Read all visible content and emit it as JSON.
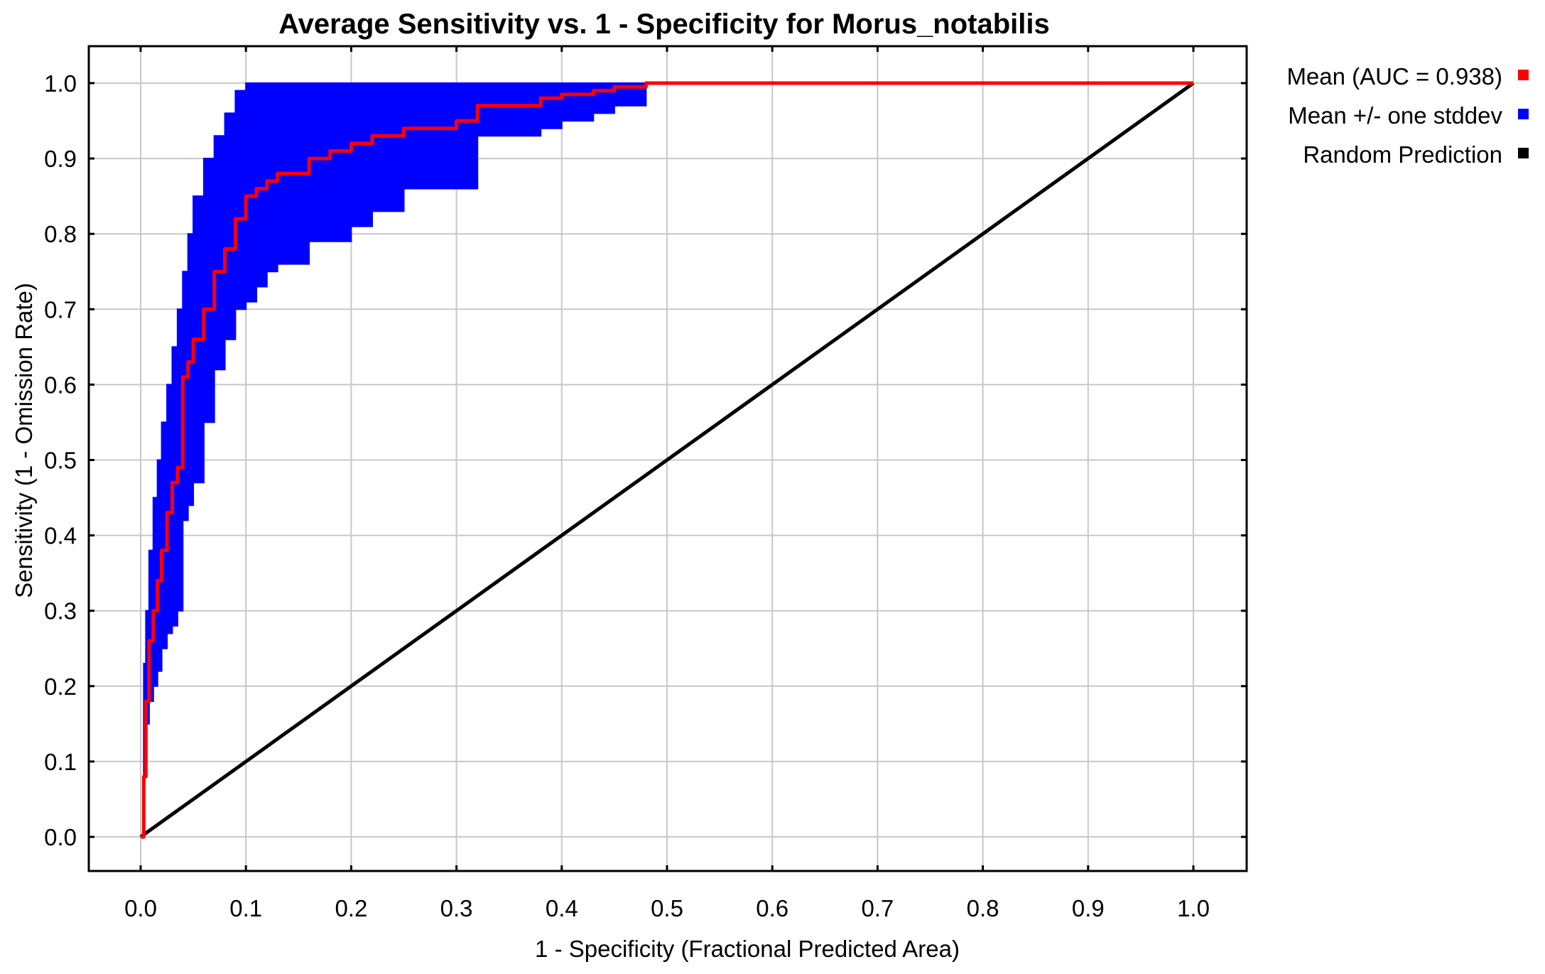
{
  "chart_data": {
    "type": "area",
    "title": "Average Sensitivity vs. 1 - Specificity for Morus_notabilis",
    "xlabel": "1 - Specificity (Fractional Predicted Area)",
    "ylabel": "Sensitivity (1 - Omission Rate)",
    "xlim": [
      0.0,
      1.0
    ],
    "ylim": [
      0.0,
      1.0
    ],
    "x_ticks": [
      "0.0",
      "0.1",
      "0.2",
      "0.3",
      "0.4",
      "0.5",
      "0.6",
      "0.7",
      "0.8",
      "0.9",
      "1.0"
    ],
    "y_ticks": [
      "0.0",
      "0.1",
      "0.2",
      "0.3",
      "0.4",
      "0.5",
      "0.6",
      "0.7",
      "0.8",
      "0.9",
      "1.0"
    ],
    "grid": true,
    "legend_position": "right",
    "colors": {
      "mean": "#ff0000",
      "stddev": "#0000ff",
      "random": "#000000"
    },
    "series": [
      {
        "name": "Mean (AUC = 0.938)",
        "x": [
          0.0,
          0.003,
          0.005,
          0.008,
          0.012,
          0.016,
          0.02,
          0.025,
          0.03,
          0.035,
          0.04,
          0.045,
          0.05,
          0.06,
          0.07,
          0.08,
          0.09,
          0.1,
          0.11,
          0.12,
          0.13,
          0.15,
          0.16,
          0.18,
          0.2,
          0.22,
          0.25,
          0.28,
          0.3,
          0.32,
          0.35,
          0.38,
          0.4,
          0.43,
          0.45,
          0.48,
          0.5,
          0.6,
          0.7,
          0.8,
          0.9,
          1.0
        ],
        "y": [
          0.0,
          0.08,
          0.18,
          0.26,
          0.3,
          0.34,
          0.38,
          0.43,
          0.47,
          0.49,
          0.61,
          0.63,
          0.66,
          0.7,
          0.75,
          0.78,
          0.82,
          0.85,
          0.86,
          0.87,
          0.88,
          0.88,
          0.9,
          0.91,
          0.92,
          0.93,
          0.94,
          0.94,
          0.95,
          0.97,
          0.97,
          0.98,
          0.985,
          0.99,
          0.995,
          1.0,
          1.0,
          1.0,
          1.0,
          1.0,
          1.0,
          1.0
        ]
      },
      {
        "name": "Mean +/- one stddev",
        "x": [
          0.0,
          0.003,
          0.005,
          0.008,
          0.012,
          0.016,
          0.02,
          0.025,
          0.03,
          0.035,
          0.04,
          0.045,
          0.05,
          0.06,
          0.07,
          0.08,
          0.09,
          0.1,
          0.11,
          0.12,
          0.13,
          0.15,
          0.16,
          0.18,
          0.2,
          0.22,
          0.25,
          0.28,
          0.3,
          0.32,
          0.35,
          0.38,
          0.4,
          0.43,
          0.45,
          0.48,
          0.5,
          0.6,
          0.7,
          0.8,
          0.9,
          1.0
        ],
        "upper": [
          0.0,
          0.23,
          0.3,
          0.38,
          0.45,
          0.5,
          0.55,
          0.6,
          0.65,
          0.7,
          0.75,
          0.8,
          0.85,
          0.9,
          0.93,
          0.96,
          0.99,
          1.0,
          1.0,
          1.0,
          1.0,
          1.0,
          1.0,
          1.0,
          1.0,
          1.0,
          1.0,
          1.0,
          1.0,
          1.0,
          1.0,
          1.0,
          1.0,
          1.0,
          1.0,
          1.0,
          1.0,
          1.0,
          1.0,
          1.0,
          1.0,
          1.0
        ],
        "lower": [
          0.0,
          0.09,
          0.15,
          0.18,
          0.2,
          0.22,
          0.25,
          0.27,
          0.28,
          0.3,
          0.42,
          0.44,
          0.47,
          0.55,
          0.62,
          0.66,
          0.7,
          0.71,
          0.73,
          0.75,
          0.76,
          0.76,
          0.79,
          0.79,
          0.81,
          0.83,
          0.86,
          0.86,
          0.86,
          0.93,
          0.93,
          0.94,
          0.95,
          0.96,
          0.97,
          1.0,
          1.0,
          1.0,
          1.0,
          1.0,
          1.0,
          1.0
        ]
      },
      {
        "name": "Random Prediction",
        "x": [
          0.0,
          1.0
        ],
        "y": [
          0.0,
          1.0
        ]
      }
    ]
  }
}
